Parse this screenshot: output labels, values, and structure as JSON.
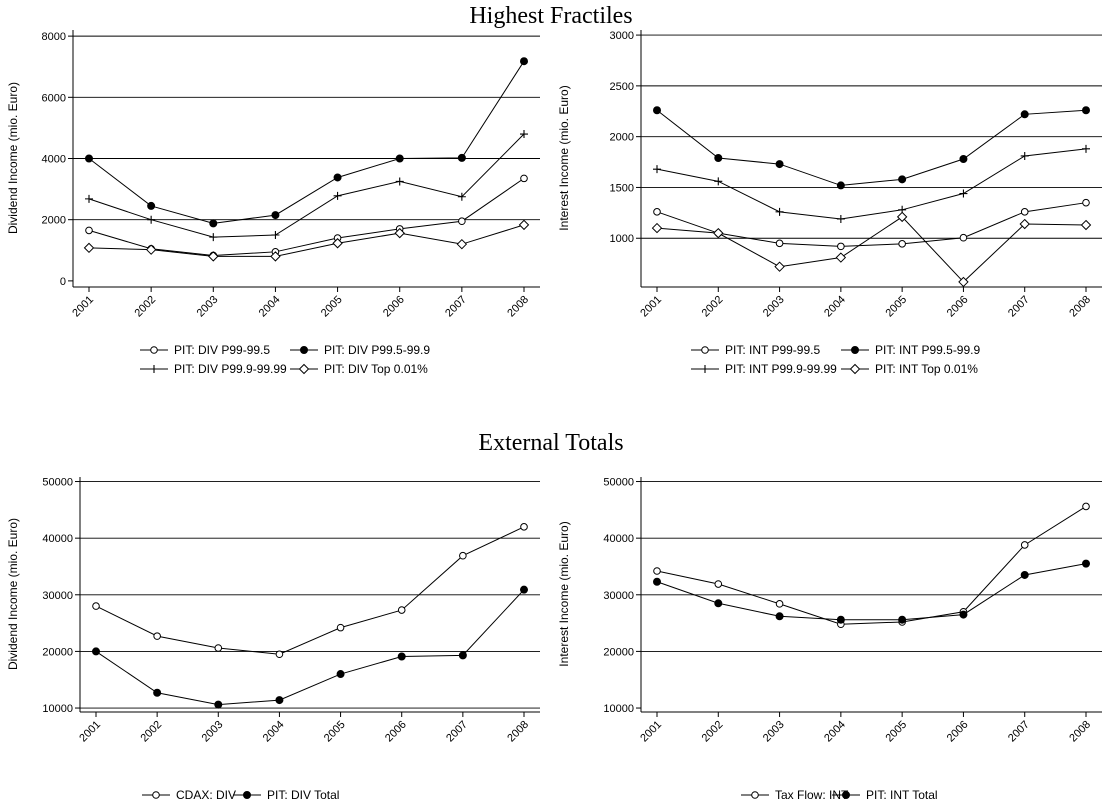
{
  "sections": [
    {
      "title": "Highest Fractiles"
    },
    {
      "title": "External Totals"
    }
  ],
  "chart_data": [
    {
      "type": "line",
      "ylabel": "Dividend Income (mio. Euro)",
      "x": [
        "2001",
        "2002",
        "2003",
        "2004",
        "2005",
        "2006",
        "2007",
        "2008"
      ],
      "ylim": [
        -200,
        8200
      ],
      "yticks": [
        0,
        2000,
        4000,
        6000,
        8000
      ],
      "gridlines": [
        2000,
        4000,
        6000,
        8000
      ],
      "series": [
        {
          "name": "PIT: DIV P99-99.5",
          "marker": "circle-open",
          "values": [
            1650,
            1050,
            830,
            950,
            1400,
            1700,
            1950,
            3350
          ]
        },
        {
          "name": "PIT: DIV P99.5-99.9",
          "marker": "circle-filled",
          "values": [
            4000,
            2450,
            1880,
            2150,
            3380,
            4000,
            4020,
            7180
          ]
        },
        {
          "name": "PIT: DIV P99.9-99.99",
          "marker": "plus",
          "values": [
            2680,
            2000,
            1430,
            1500,
            2780,
            3250,
            2750,
            4800
          ]
        },
        {
          "name": "PIT: DIV Top 0.01%",
          "marker": "diamond",
          "values": [
            1080,
            1020,
            800,
            800,
            1230,
            1560,
            1200,
            1830
          ]
        }
      ]
    },
    {
      "type": "line",
      "ylabel": "Interest Income (mio. Euro)",
      "x": [
        "2001",
        "2002",
        "2003",
        "2004",
        "2005",
        "2006",
        "2007",
        "2008"
      ],
      "ylim": [
        520,
        3050
      ],
      "yticks": [
        1000,
        1500,
        2000,
        2500,
        3000
      ],
      "gridlines": [
        1000,
        1500,
        2000,
        2500,
        3000
      ],
      "series": [
        {
          "name": "PIT: INT P99-99.5",
          "marker": "circle-open",
          "values": [
            1260,
            1050,
            950,
            920,
            945,
            1005,
            1260,
            1350
          ]
        },
        {
          "name": "PIT: INT P99.5-99.9",
          "marker": "circle-filled",
          "values": [
            2260,
            1790,
            1730,
            1520,
            1580,
            1780,
            2220,
            2260
          ]
        },
        {
          "name": "PIT: INT P99.9-99.99",
          "marker": "plus",
          "values": [
            1680,
            1560,
            1260,
            1190,
            1280,
            1440,
            1810,
            1880
          ]
        },
        {
          "name": "PIT: INT Top 0.01%",
          "marker": "diamond",
          "values": [
            1100,
            1050,
            720,
            810,
            1210,
            570,
            1140,
            1130
          ]
        }
      ]
    },
    {
      "type": "line",
      "ylabel": "Dividend Income (mio. Euro)",
      "x": [
        "2001",
        "2002",
        "2003",
        "2004",
        "2005",
        "2006",
        "2007",
        "2008"
      ],
      "ylim": [
        9300,
        50800
      ],
      "yticks": [
        10000,
        20000,
        30000,
        40000,
        50000
      ],
      "gridlines": [
        10000,
        20000,
        30000,
        40000,
        50000
      ],
      "series": [
        {
          "name": "CDAX: DIV",
          "marker": "circle-open",
          "values": [
            28000,
            22700,
            20600,
            19500,
            24200,
            27300,
            36900,
            42000
          ]
        },
        {
          "name": "PIT: DIV Total",
          "marker": "circle-filled",
          "values": [
            20000,
            12700,
            10600,
            11400,
            16000,
            19100,
            19300,
            30900
          ]
        }
      ]
    },
    {
      "type": "line",
      "ylabel": "Interest Income (mio. Euro)",
      "x": [
        "2001",
        "2002",
        "2003",
        "2004",
        "2005",
        "2006",
        "2007",
        "2008"
      ],
      "ylim": [
        9300,
        50800
      ],
      "yticks": [
        10000,
        20000,
        30000,
        40000,
        50000
      ],
      "gridlines": [
        20000,
        30000,
        40000,
        50000
      ],
      "series": [
        {
          "name": "Tax Flow: INT",
          "marker": "circle-open",
          "values": [
            34200,
            31900,
            28400,
            24800,
            25200,
            27000,
            38800,
            45600
          ]
        },
        {
          "name": "PIT: INT Total",
          "marker": "circle-filled",
          "values": [
            32300,
            28500,
            26200,
            25600,
            25600,
            26500,
            33500,
            35500
          ]
        }
      ]
    }
  ]
}
